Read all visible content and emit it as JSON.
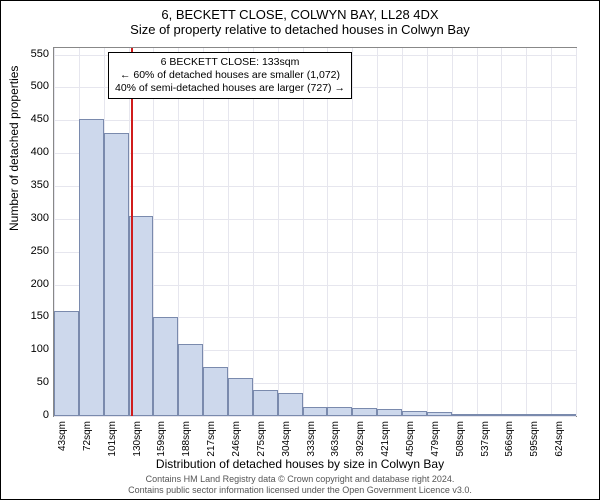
{
  "title_line1": "6, BECKETT CLOSE, COLWYN BAY, LL28 4DX",
  "title_line2": "Size of property relative to detached houses in Colwyn Bay",
  "ylabel": "Number of detached properties",
  "xlabel": "Distribution of detached houses by size in Colwyn Bay",
  "footer_line1": "Contains HM Land Registry data © Crown copyright and database right 2024.",
  "footer_line2": "Contains public sector information licensed under the Open Government Licence v3.0.",
  "annotation": {
    "line1": "6 BECKETT CLOSE: 133sqm",
    "line2": "← 60% of detached houses are smaller (1,072)",
    "line3": "40% of semi-detached houses are larger (727) →"
  },
  "chart": {
    "type": "histogram",
    "bar_fill": "#cdd8ec",
    "bar_stroke": "#7a8aad",
    "grid_color": "#e6e6ee",
    "background": "#ffffff",
    "marker_color": "#d01c1c",
    "marker_x_value": 133,
    "ylim": [
      0,
      560
    ],
    "ytick_step": 50,
    "x_start": 43,
    "x_bin_width": 29,
    "x_bins": 21,
    "x_tick_labels": [
      "43sqm",
      "72sqm",
      "101sqm",
      "130sqm",
      "159sqm",
      "188sqm",
      "217sqm",
      "246sqm",
      "275sqm",
      "304sqm",
      "333sqm",
      "363sqm",
      "392sqm",
      "421sqm",
      "450sqm",
      "479sqm",
      "508sqm",
      "537sqm",
      "566sqm",
      "595sqm",
      "624sqm"
    ],
    "values": [
      160,
      452,
      430,
      305,
      150,
      110,
      75,
      58,
      40,
      35,
      14,
      14,
      12,
      10,
      8,
      6,
      3,
      3,
      3,
      3,
      3
    ],
    "title_fontsize": 13,
    "axis_label_fontsize": 12,
    "tick_fontsize": 11,
    "annot_fontsize": 10.5
  }
}
